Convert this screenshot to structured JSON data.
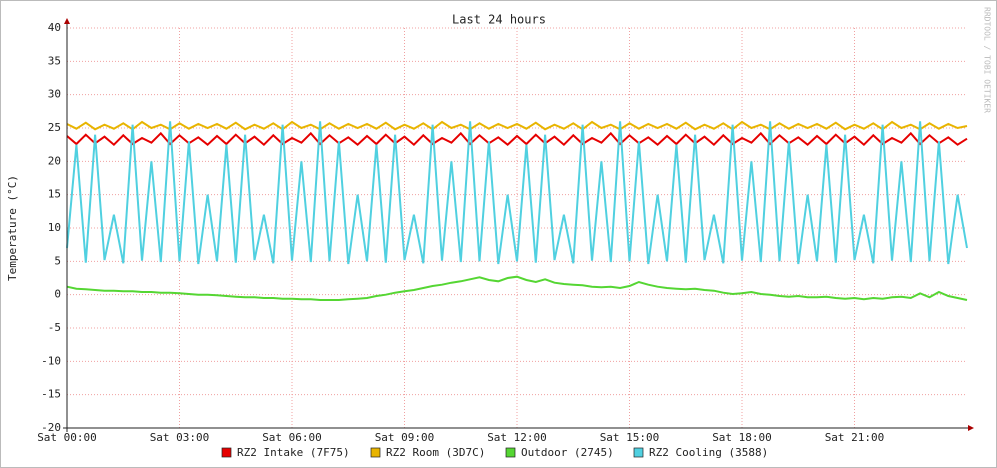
{
  "chart_data": {
    "type": "line",
    "title": "Last 24 hours",
    "y_label": "Temperature (°C)",
    "watermark": "RRDTOOL / TOBI OETIKER",
    "x": [
      0,
      0.25,
      0.5,
      0.75,
      1,
      1.25,
      1.5,
      1.75,
      2,
      2.25,
      2.5,
      2.75,
      3,
      3.25,
      3.5,
      3.75,
      4,
      4.25,
      4.5,
      4.75,
      5,
      5.25,
      5.5,
      5.75,
      6,
      6.25,
      6.5,
      6.75,
      7,
      7.25,
      7.5,
      7.75,
      8,
      8.25,
      8.5,
      8.75,
      9,
      9.25,
      9.5,
      9.75,
      10,
      10.25,
      10.5,
      10.75,
      11,
      11.25,
      11.5,
      11.75,
      12,
      12.25,
      12.5,
      12.75,
      13,
      13.25,
      13.5,
      13.75,
      14,
      14.25,
      14.5,
      14.75,
      15,
      15.25,
      15.5,
      15.75,
      16,
      16.25,
      16.5,
      16.75,
      17,
      17.25,
      17.5,
      17.75,
      18,
      18.25,
      18.5,
      18.75,
      19,
      19.25,
      19.5,
      19.75,
      20,
      20.25,
      20.5,
      20.75,
      21,
      21.25,
      21.5,
      21.75,
      22,
      22.25,
      22.5,
      22.75,
      23,
      23.25,
      23.5,
      23.75,
      24
    ],
    "xlim": [
      0,
      24
    ],
    "xticks": [
      {
        "value": 0,
        "label": "Sat 00:00"
      },
      {
        "value": 3,
        "label": "Sat 03:00"
      },
      {
        "value": 6,
        "label": "Sat 06:00"
      },
      {
        "value": 9,
        "label": "Sat 09:00"
      },
      {
        "value": 12,
        "label": "Sat 12:00"
      },
      {
        "value": 15,
        "label": "Sat 15:00"
      },
      {
        "value": 18,
        "label": "Sat 18:00"
      },
      {
        "value": 21,
        "label": "Sat 21:00"
      }
    ],
    "ylim": [
      -20,
      40
    ],
    "yticks": [
      -20,
      -15,
      -10,
      -5,
      0,
      5,
      10,
      15,
      20,
      25,
      30,
      35,
      40
    ],
    "grid": true,
    "series": [
      {
        "name": "RZ2 Intake (7F75)",
        "color": "#e60000",
        "values": [
          23.8,
          22.6,
          24.0,
          22.7,
          23.7,
          22.5,
          23.9,
          22.6,
          23.5,
          22.8,
          24.2,
          22.6,
          23.9,
          22.7,
          23.6,
          22.5,
          23.8,
          22.6,
          24.0,
          22.7,
          23.7,
          22.5,
          23.9,
          22.6,
          23.5,
          22.8,
          24.2,
          22.6,
          23.9,
          22.7,
          23.6,
          22.5,
          23.8,
          22.6,
          24.0,
          22.7,
          23.7,
          22.5,
          23.9,
          22.6,
          23.5,
          22.8,
          24.2,
          22.6,
          23.9,
          22.7,
          23.6,
          22.5,
          23.8,
          22.6,
          24.0,
          22.7,
          23.7,
          22.5,
          23.9,
          22.6,
          23.5,
          22.8,
          24.2,
          22.6,
          23.9,
          22.7,
          23.6,
          22.5,
          23.8,
          22.6,
          24.0,
          22.7,
          23.7,
          22.5,
          23.9,
          22.6,
          23.5,
          22.8,
          24.2,
          22.6,
          23.9,
          22.7,
          23.6,
          22.5,
          23.8,
          22.6,
          24.0,
          22.7,
          23.7,
          22.5,
          23.9,
          22.6,
          23.5,
          22.8,
          24.2,
          22.6,
          23.9,
          22.7,
          23.6,
          22.5,
          23.4
        ]
      },
      {
        "name": "RZ2 Room (3D7C)",
        "color": "#e8b400",
        "values": [
          25.6,
          24.9,
          25.8,
          24.8,
          25.5,
          24.9,
          25.7,
          24.8,
          25.9,
          25.0,
          25.5,
          24.8,
          25.7,
          24.9,
          25.6,
          25.0,
          25.6,
          24.9,
          25.8,
          24.8,
          25.5,
          24.9,
          25.7,
          24.8,
          25.9,
          25.0,
          25.5,
          24.8,
          25.7,
          24.9,
          25.6,
          25.0,
          25.6,
          24.9,
          25.8,
          24.8,
          25.5,
          24.9,
          25.7,
          24.8,
          25.9,
          25.0,
          25.5,
          24.8,
          25.7,
          24.9,
          25.6,
          25.0,
          25.6,
          24.9,
          25.8,
          24.8,
          25.5,
          24.9,
          25.7,
          24.8,
          25.9,
          25.0,
          25.5,
          24.8,
          25.7,
          24.9,
          25.6,
          25.0,
          25.6,
          24.9,
          25.8,
          24.8,
          25.5,
          24.9,
          25.7,
          24.8,
          25.9,
          25.0,
          25.5,
          24.8,
          25.7,
          24.9,
          25.6,
          25.0,
          25.6,
          24.9,
          25.8,
          24.8,
          25.5,
          24.9,
          25.7,
          24.8,
          25.9,
          25.0,
          25.5,
          24.8,
          25.7,
          24.9,
          25.6,
          25.0,
          25.3
        ]
      },
      {
        "name": "Outdoor (2745)",
        "color": "#55d633",
        "values": [
          1.2,
          0.9,
          0.8,
          0.7,
          0.6,
          0.6,
          0.5,
          0.5,
          0.4,
          0.4,
          0.3,
          0.3,
          0.2,
          0.1,
          0,
          0,
          -0.1,
          -0.2,
          -0.3,
          -0.4,
          -0.4,
          -0.5,
          -0.5,
          -0.6,
          -0.6,
          -0.7,
          -0.7,
          -0.8,
          -0.8,
          -0.8,
          -0.7,
          -0.6,
          -0.5,
          -0.2,
          0,
          0.3,
          0.5,
          0.7,
          1.0,
          1.3,
          1.5,
          1.8,
          2.0,
          2.3,
          2.6,
          2.2,
          2.0,
          2.5,
          2.7,
          2.2,
          1.9,
          2.3,
          1.8,
          1.6,
          1.5,
          1.4,
          1.2,
          1.1,
          1.2,
          1.0,
          1.3,
          1.9,
          1.5,
          1.2,
          1.0,
          0.9,
          0.8,
          0.9,
          0.7,
          0.6,
          0.3,
          0.1,
          0.2,
          0.4,
          0.1,
          0,
          -0.2,
          -0.3,
          -0.2,
          -0.4,
          -0.4,
          -0.3,
          -0.5,
          -0.6,
          -0.5,
          -0.7,
          -0.5,
          -0.6,
          -0.4,
          -0.3,
          -0.5,
          0.2,
          -0.4,
          0.4,
          -0.2,
          -0.5,
          -0.8
        ]
      },
      {
        "name": "RZ2 Cooling (3588)",
        "color": "#50d0e0",
        "values": [
          7.0,
          22.5,
          4.8,
          24.0,
          5.2,
          12.0,
          4.7,
          25.5,
          5.1,
          20.0,
          4.9,
          26.0,
          5.0,
          23.0,
          4.6,
          15.0,
          5.0,
          22.5,
          4.8,
          24.0,
          5.2,
          12.0,
          4.7,
          25.5,
          5.1,
          20.0,
          4.9,
          26.0,
          5.0,
          23.0,
          4.6,
          15.0,
          5.0,
          22.5,
          4.8,
          24.0,
          5.2,
          12.0,
          4.7,
          25.5,
          5.1,
          20.0,
          4.9,
          26.0,
          5.0,
          23.0,
          4.6,
          15.0,
          5.0,
          22.5,
          4.8,
          24.0,
          5.2,
          12.0,
          4.7,
          25.5,
          5.1,
          20.0,
          4.9,
          26.0,
          5.0,
          23.0,
          4.6,
          15.0,
          5.0,
          22.5,
          4.8,
          24.0,
          5.2,
          12.0,
          4.7,
          25.5,
          5.1,
          20.0,
          4.9,
          26.0,
          5.0,
          23.0,
          4.6,
          15.0,
          5.0,
          22.5,
          4.8,
          24.0,
          5.2,
          12.0,
          4.7,
          25.5,
          5.1,
          20.0,
          4.9,
          26.0,
          5.0,
          23.0,
          4.6,
          15.0,
          7.0
        ]
      }
    ]
  }
}
